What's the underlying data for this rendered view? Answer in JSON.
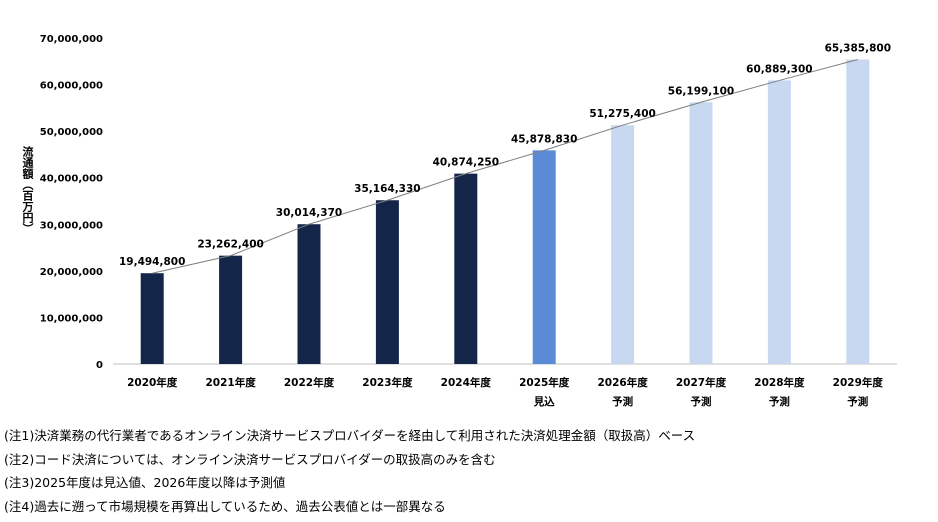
{
  "chart_data": {
    "type": "bar",
    "ylabel": "流通額（百万円）",
    "ylim": [
      0,
      70000000
    ],
    "yticks": [
      "0",
      "10,000,000",
      "20,000,000",
      "30,000,000",
      "40,000,000",
      "50,000,000",
      "60,000,000",
      "70,000,000"
    ],
    "categories": [
      "2020年度",
      "2021年度",
      "2022年度",
      "2023年度",
      "2024年度",
      "2025年度",
      "2026年度",
      "2027年度",
      "2028年度",
      "2029年度"
    ],
    "sublabels": [
      "",
      "",
      "",
      "",
      "",
      "見込",
      "予測",
      "予測",
      "予測",
      "予測"
    ],
    "values": [
      19494800,
      23262400,
      30014370,
      35164330,
      40874250,
      45878830,
      51275400,
      56199100,
      60889300,
      65385800
    ],
    "value_labels": [
      "19,494,800",
      "23,262,400",
      "30,014,370",
      "35,164,330",
      "40,874,250",
      "45,878,830",
      "51,275,400",
      "56,199,100",
      "60,889,300",
      "65,385,800"
    ],
    "bar_colors": [
      "#14254a",
      "#14254a",
      "#14254a",
      "#14254a",
      "#14254a",
      "#5b8bd6",
      "#c7d8f0",
      "#c7d8f0",
      "#c7d8f0",
      "#c7d8f0"
    ],
    "trend_line": true,
    "grid": false
  },
  "notes": [
    "(注1)決済業務の代行業者であるオンライン決済サービスプロバイダーを経由して利用された決済処理金額（取扱高）ベース",
    "(注2)コード決済については、オンライン決済サービスプロバイダーの取扱高のみを含む",
    "(注3)2025年度は見込値、2026年度以降は予測値",
    "(注4)過去に遡って市場規模を再算出しているため、過去公表値とは一部異なる"
  ]
}
